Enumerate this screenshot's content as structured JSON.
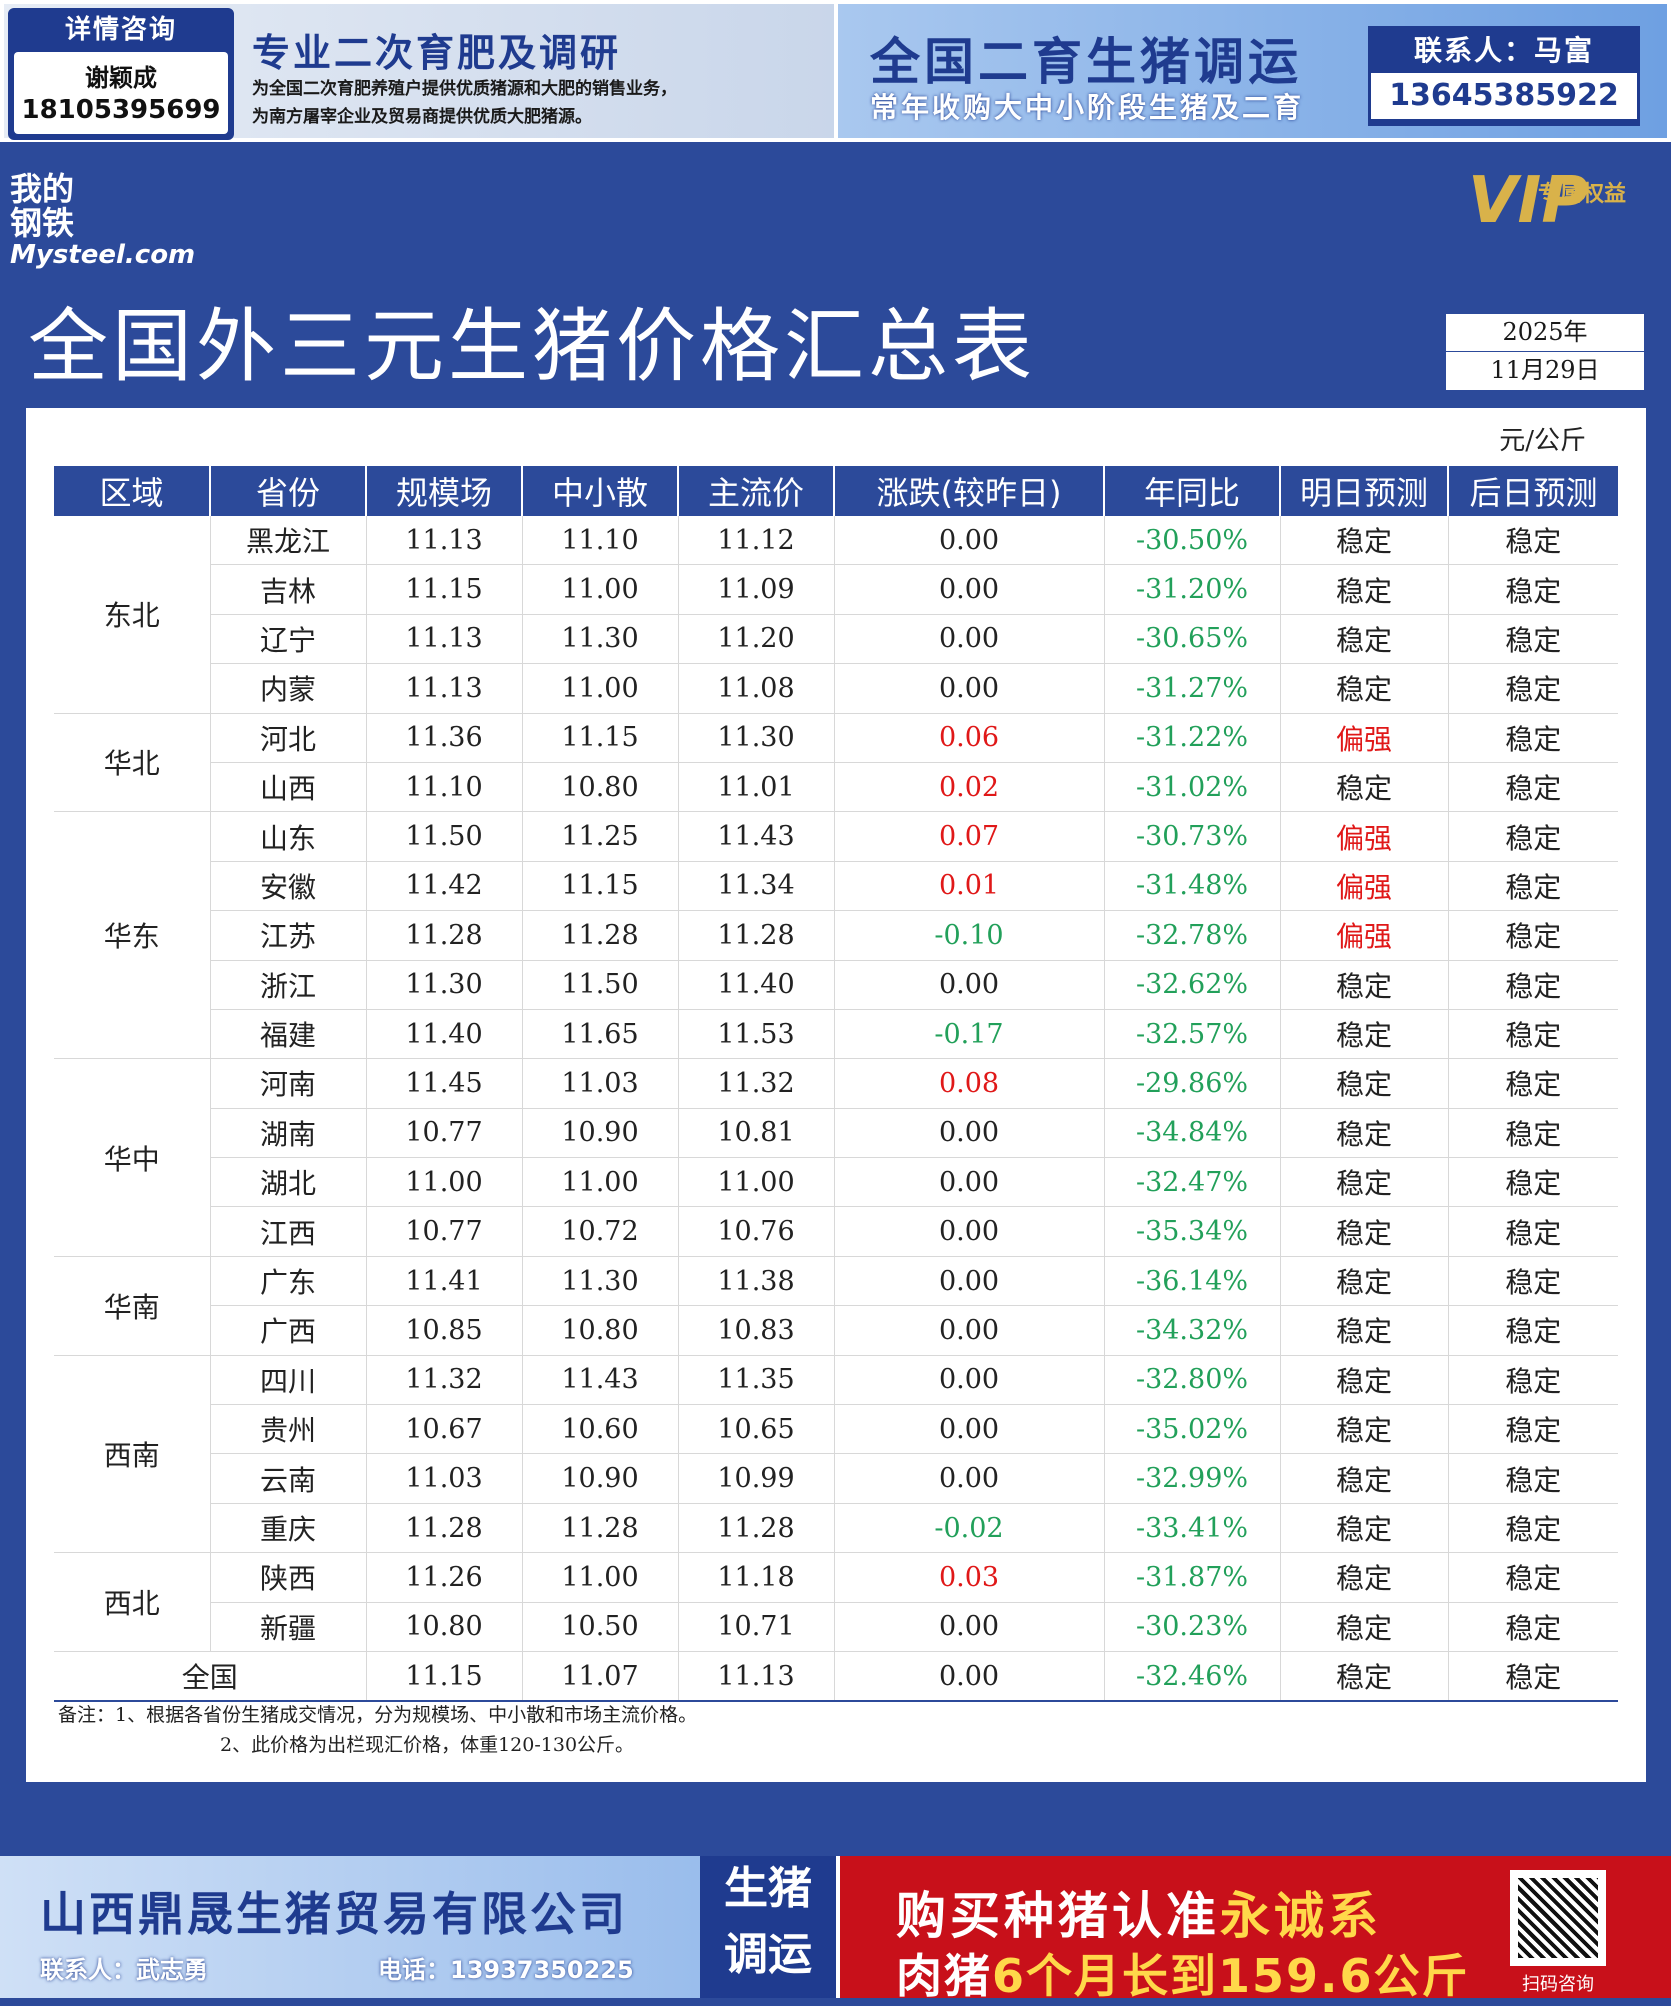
{
  "top_ads": {
    "consult_title": "详情咨询",
    "consult_name": "谢颖成",
    "consult_phone": "18105395699",
    "ad1_title": "专业二次育肥及调研",
    "ad1_line1": "为全国二次育肥养殖户提供优质猪源和大肥的销售业务，",
    "ad1_line2": "为南方屠宰企业及贸易商提供优质大肥猪源。",
    "ad2_title": "全国二育生猪调运",
    "ad2_sub": "常年收购大中小阶段生猪及二育",
    "ad2_contact": "联系人：马富",
    "ad2_phone": "13645385922"
  },
  "header": {
    "logo_cn": "我的钢铁",
    "logo_en": "Mysteel.com",
    "vip_big": "VIP",
    "vip_small": "专属权益",
    "title": "全国外三元生猪价格汇总表",
    "date_year": "2025年",
    "date_day": "11月29日"
  },
  "table": {
    "unit": "元/公斤",
    "columns": [
      "区域",
      "省份",
      "规模场",
      "中小散",
      "主流价",
      "涨跌(较昨日)",
      "年同比",
      "明日预测",
      "后日预测"
    ],
    "rows": [
      {
        "region": "东北",
        "span": 4,
        "province": "黑龙江",
        "large": "11.13",
        "small": "11.10",
        "main": "11.12",
        "change": "0.00",
        "yoy": "-30.50%",
        "tomorrow": "稳定",
        "after": "稳定"
      },
      {
        "province": "吉林",
        "large": "11.15",
        "small": "11.00",
        "main": "11.09",
        "change": "0.00",
        "yoy": "-31.20%",
        "tomorrow": "稳定",
        "after": "稳定"
      },
      {
        "province": "辽宁",
        "large": "11.13",
        "small": "11.30",
        "main": "11.20",
        "change": "0.00",
        "yoy": "-30.65%",
        "tomorrow": "稳定",
        "after": "稳定"
      },
      {
        "province": "内蒙",
        "large": "11.13",
        "small": "11.00",
        "main": "11.08",
        "change": "0.00",
        "yoy": "-31.27%",
        "tomorrow": "稳定",
        "after": "稳定"
      },
      {
        "region": "华北",
        "span": 2,
        "province": "河北",
        "large": "11.36",
        "small": "11.15",
        "main": "11.30",
        "change": "0.06",
        "yoy": "-31.22%",
        "tomorrow": "偏强",
        "after": "稳定"
      },
      {
        "province": "山西",
        "large": "11.10",
        "small": "10.80",
        "main": "11.01",
        "change": "0.02",
        "yoy": "-31.02%",
        "tomorrow": "稳定",
        "after": "稳定"
      },
      {
        "region": "华东",
        "span": 5,
        "province": "山东",
        "large": "11.50",
        "small": "11.25",
        "main": "11.43",
        "change": "0.07",
        "yoy": "-30.73%",
        "tomorrow": "偏强",
        "after": "稳定"
      },
      {
        "province": "安徽",
        "large": "11.42",
        "small": "11.15",
        "main": "11.34",
        "change": "0.01",
        "yoy": "-31.48%",
        "tomorrow": "偏强",
        "after": "稳定"
      },
      {
        "province": "江苏",
        "large": "11.28",
        "small": "11.28",
        "main": "11.28",
        "change": "-0.10",
        "yoy": "-32.78%",
        "tomorrow": "偏强",
        "after": "稳定"
      },
      {
        "province": "浙江",
        "large": "11.30",
        "small": "11.50",
        "main": "11.40",
        "change": "0.00",
        "yoy": "-32.62%",
        "tomorrow": "稳定",
        "after": "稳定"
      },
      {
        "province": "福建",
        "large": "11.40",
        "small": "11.65",
        "main": "11.53",
        "change": "-0.17",
        "yoy": "-32.57%",
        "tomorrow": "稳定",
        "after": "稳定"
      },
      {
        "region": "华中",
        "span": 4,
        "province": "河南",
        "large": "11.45",
        "small": "11.03",
        "main": "11.32",
        "change": "0.08",
        "yoy": "-29.86%",
        "tomorrow": "稳定",
        "after": "稳定"
      },
      {
        "province": "湖南",
        "large": "10.77",
        "small": "10.90",
        "main": "10.81",
        "change": "0.00",
        "yoy": "-34.84%",
        "tomorrow": "稳定",
        "after": "稳定"
      },
      {
        "province": "湖北",
        "large": "11.00",
        "small": "11.00",
        "main": "11.00",
        "change": "0.00",
        "yoy": "-32.47%",
        "tomorrow": "稳定",
        "after": "稳定"
      },
      {
        "province": "江西",
        "large": "10.77",
        "small": "10.72",
        "main": "10.76",
        "change": "0.00",
        "yoy": "-35.34%",
        "tomorrow": "稳定",
        "after": "稳定"
      },
      {
        "region": "华南",
        "span": 2,
        "province": "广东",
        "large": "11.41",
        "small": "11.30",
        "main": "11.38",
        "change": "0.00",
        "yoy": "-36.14%",
        "tomorrow": "稳定",
        "after": "稳定"
      },
      {
        "province": "广西",
        "large": "10.85",
        "small": "10.80",
        "main": "10.83",
        "change": "0.00",
        "yoy": "-34.32%",
        "tomorrow": "稳定",
        "after": "稳定"
      },
      {
        "region": "西南",
        "span": 4,
        "province": "四川",
        "large": "11.32",
        "small": "11.43",
        "main": "11.35",
        "change": "0.00",
        "yoy": "-32.80%",
        "tomorrow": "稳定",
        "after": "稳定"
      },
      {
        "province": "贵州",
        "large": "10.67",
        "small": "10.60",
        "main": "10.65",
        "change": "0.00",
        "yoy": "-35.02%",
        "tomorrow": "稳定",
        "after": "稳定"
      },
      {
        "province": "云南",
        "large": "11.03",
        "small": "10.90",
        "main": "10.99",
        "change": "0.00",
        "yoy": "-32.99%",
        "tomorrow": "稳定",
        "after": "稳定"
      },
      {
        "province": "重庆",
        "large": "11.28",
        "small": "11.28",
        "main": "11.28",
        "change": "-0.02",
        "yoy": "-33.41%",
        "tomorrow": "稳定",
        "after": "稳定"
      },
      {
        "region": "西北",
        "span": 2,
        "province": "陕西",
        "large": "11.26",
        "small": "11.00",
        "main": "11.18",
        "change": "0.03",
        "yoy": "-31.87%",
        "tomorrow": "稳定",
        "after": "稳定"
      },
      {
        "province": "新疆",
        "large": "10.80",
        "small": "10.50",
        "main": "10.71",
        "change": "0.00",
        "yoy": "-30.23%",
        "tomorrow": "稳定",
        "after": "稳定"
      }
    ],
    "total": {
      "label": "全国",
      "large": "11.15",
      "small": "11.07",
      "main": "11.13",
      "change": "0.00",
      "yoy": "-32.46%",
      "tomorrow": "稳定",
      "after": "稳定"
    },
    "note1": "备注：1、根据各省份生猪成交情况，分为规模场、中小散和市场主流价格。",
    "note2": "2、此价格为出栏现汇价格，体重120-130公斤。"
  },
  "colors": {
    "up": "#e01818",
    "down": "#22a05a",
    "strong": "#e01818",
    "brand": "#2c4a9a"
  },
  "bottom_ads": {
    "ad1_title": "山西鼎晟生猪贸易有限公司",
    "ad1_contact": "联系人：武志勇",
    "ad1_phone": "电话：13937350225",
    "ad1_side_1": "生猪",
    "ad1_side_2": "调运",
    "ad2_l1_a": "购买种猪认准",
    "ad2_l1_b": "永诚系",
    "ad2_l2_a": "肉猪",
    "ad2_l2_b": "6个月长到",
    "ad2_l2_c": "159.6公斤",
    "qr_label": "扫码咨询",
    "qr_icon": "qr-code-icon"
  }
}
